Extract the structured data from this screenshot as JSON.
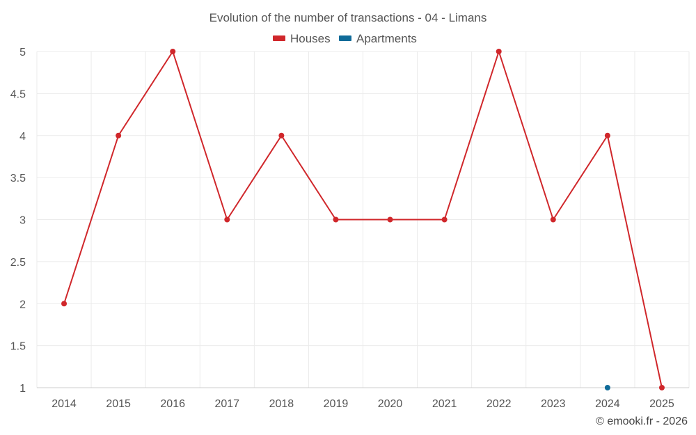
{
  "chart_data": {
    "type": "line",
    "title": "Evolution of the number of transactions - 04 - Limans",
    "categories": [
      "2014",
      "2015",
      "2016",
      "2017",
      "2018",
      "2019",
      "2020",
      "2021",
      "2022",
      "2023",
      "2024",
      "2025"
    ],
    "series": [
      {
        "name": "Houses",
        "color": "#d0272b",
        "values": [
          2,
          4,
          5,
          3,
          4,
          3,
          3,
          3,
          5,
          3,
          4,
          1
        ]
      },
      {
        "name": "Apartments",
        "color": "#0f6b99",
        "values": [
          null,
          null,
          null,
          null,
          null,
          null,
          null,
          null,
          null,
          null,
          1,
          null
        ]
      }
    ],
    "ylim": [
      1,
      5
    ],
    "yticks": [
      "1",
      "1.5",
      "2",
      "2.5",
      "3",
      "3.5",
      "4",
      "4.5",
      "5"
    ],
    "legend_position": "top-center",
    "grid": true
  },
  "credit": "© emooki.fr - 2026"
}
